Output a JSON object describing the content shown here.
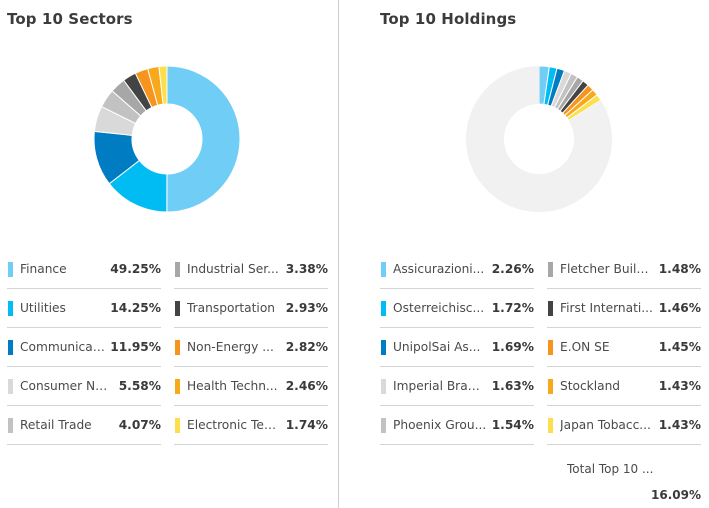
{
  "colors": [
    "#6fcdf6",
    "#00bcf2",
    "#007cc3",
    "#d9d9d9",
    "#c2c2c2",
    "#a7a7a7",
    "#444444",
    "#f7941d",
    "#f7a81b",
    "#fddf4d"
  ],
  "remainder_color": "#f1f1f1",
  "sectors": {
    "title": "Top 10 Sectors",
    "items": [
      {
        "label": "Finance",
        "value": "49.25%",
        "num": 49.25
      },
      {
        "label": "Utilities",
        "value": "14.25%",
        "num": 14.25
      },
      {
        "label": "Communicati...",
        "value": "11.95%",
        "num": 11.95
      },
      {
        "label": "Consumer No...",
        "value": "5.58%",
        "num": 5.58
      },
      {
        "label": "Retail Trade",
        "value": "4.07%",
        "num": 4.07
      },
      {
        "label": "Industrial Ser...",
        "value": "3.38%",
        "num": 3.38
      },
      {
        "label": "Transportation",
        "value": "2.93%",
        "num": 2.93
      },
      {
        "label": "Non-Energy ...",
        "value": "2.82%",
        "num": 2.82
      },
      {
        "label": "Health Techn...",
        "value": "2.46%",
        "num": 2.46
      },
      {
        "label": "Electronic Tec...",
        "value": "1.74%",
        "num": 1.74
      }
    ]
  },
  "holdings": {
    "title": "Top 10 Holdings",
    "items": [
      {
        "label": "Assicurazioni...",
        "value": "2.26%",
        "num": 2.26
      },
      {
        "label": "Osterreichisc...",
        "value": "1.72%",
        "num": 1.72
      },
      {
        "label": "UnipolSai As...",
        "value": "1.69%",
        "num": 1.69
      },
      {
        "label": "Imperial Bran...",
        "value": "1.63%",
        "num": 1.63
      },
      {
        "label": "Phoenix Grou...",
        "value": "1.54%",
        "num": 1.54
      },
      {
        "label": "Fletcher Build...",
        "value": "1.48%",
        "num": 1.48
      },
      {
        "label": "First Internati...",
        "value": "1.46%",
        "num": 1.46
      },
      {
        "label": "E.ON SE",
        "value": "1.45%",
        "num": 1.45
      },
      {
        "label": "Stockland",
        "value": "1.43%",
        "num": 1.43
      },
      {
        "label": "Japan Tobacc...",
        "value": "1.43%",
        "num": 1.43
      }
    ],
    "total_label": "Total Top 10 ...",
    "total_value": "16.09%"
  }
}
